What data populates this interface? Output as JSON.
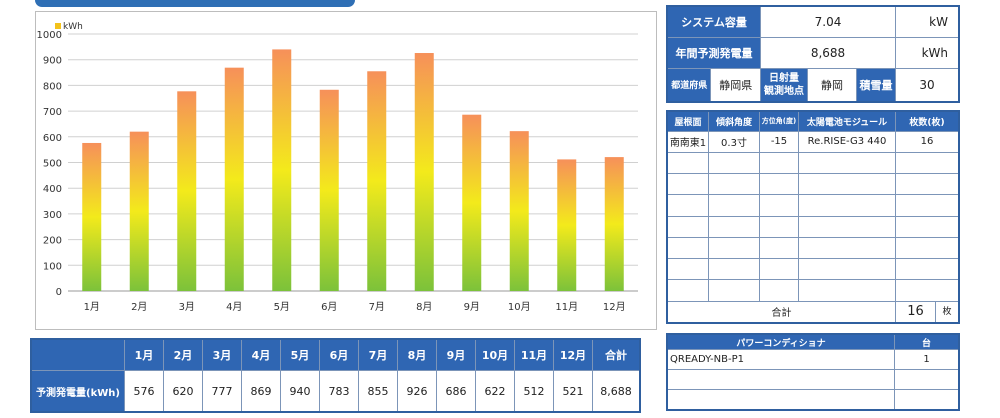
{
  "chart_data": {
    "type": "bar",
    "categories": [
      "1月",
      "2月",
      "3月",
      "4月",
      "5月",
      "6月",
      "7月",
      "8月",
      "9月",
      "10月",
      "11月",
      "12月"
    ],
    "values": [
      576,
      620,
      777,
      869,
      940,
      783,
      855,
      926,
      686,
      622,
      512,
      521
    ],
    "legend": "kWh",
    "ylim": [
      0,
      1000
    ],
    "yticks": [
      0,
      100,
      200,
      300,
      400,
      500,
      600,
      700,
      800,
      900,
      1000
    ],
    "grid": true,
    "colors": {
      "top": "#f6905a",
      "mid": "#f3ea1b",
      "bottom": "#7cc23a"
    }
  },
  "monthly_table": {
    "row_label": "予測発電量(kWh)",
    "months": [
      "1月",
      "2月",
      "3月",
      "4月",
      "5月",
      "6月",
      "7月",
      "8月",
      "9月",
      "10月",
      "11月",
      "12月"
    ],
    "values": [
      "576",
      "620",
      "777",
      "869",
      "940",
      "783",
      "855",
      "926",
      "686",
      "622",
      "512",
      "521"
    ],
    "total_label": "合計",
    "total_value": "8,688"
  },
  "system": {
    "capacity_label": "システム容量",
    "capacity_value": "7.04",
    "capacity_unit": "kW",
    "annual_label": "年間予測発電量",
    "annual_value": "8,688",
    "annual_unit": "kWh",
    "pref_label": "都道府県",
    "pref_value": "静岡県",
    "obs_label": "日射量\n観測地点",
    "obs_value": "静岡",
    "snow_label": "積雪量",
    "snow_value": "30"
  },
  "modules": {
    "headers": [
      "屋根面",
      "傾斜角度",
      "方位角(度)",
      "太陽電池モジュール",
      "枚数(枚)"
    ],
    "rows": [
      [
        "南南東1",
        "0.3寸",
        "-15",
        "Re.RISE-G3 440",
        "16"
      ]
    ],
    "empty_rows": 7,
    "total_label": "合計",
    "total_value": "16",
    "total_unit": "枚"
  },
  "power_conditioner": {
    "header_name": "パワーコンディショナ",
    "header_count": "台",
    "rows": [
      [
        "QREADY-NB-P1",
        "1"
      ]
    ],
    "empty_rows": 2
  }
}
